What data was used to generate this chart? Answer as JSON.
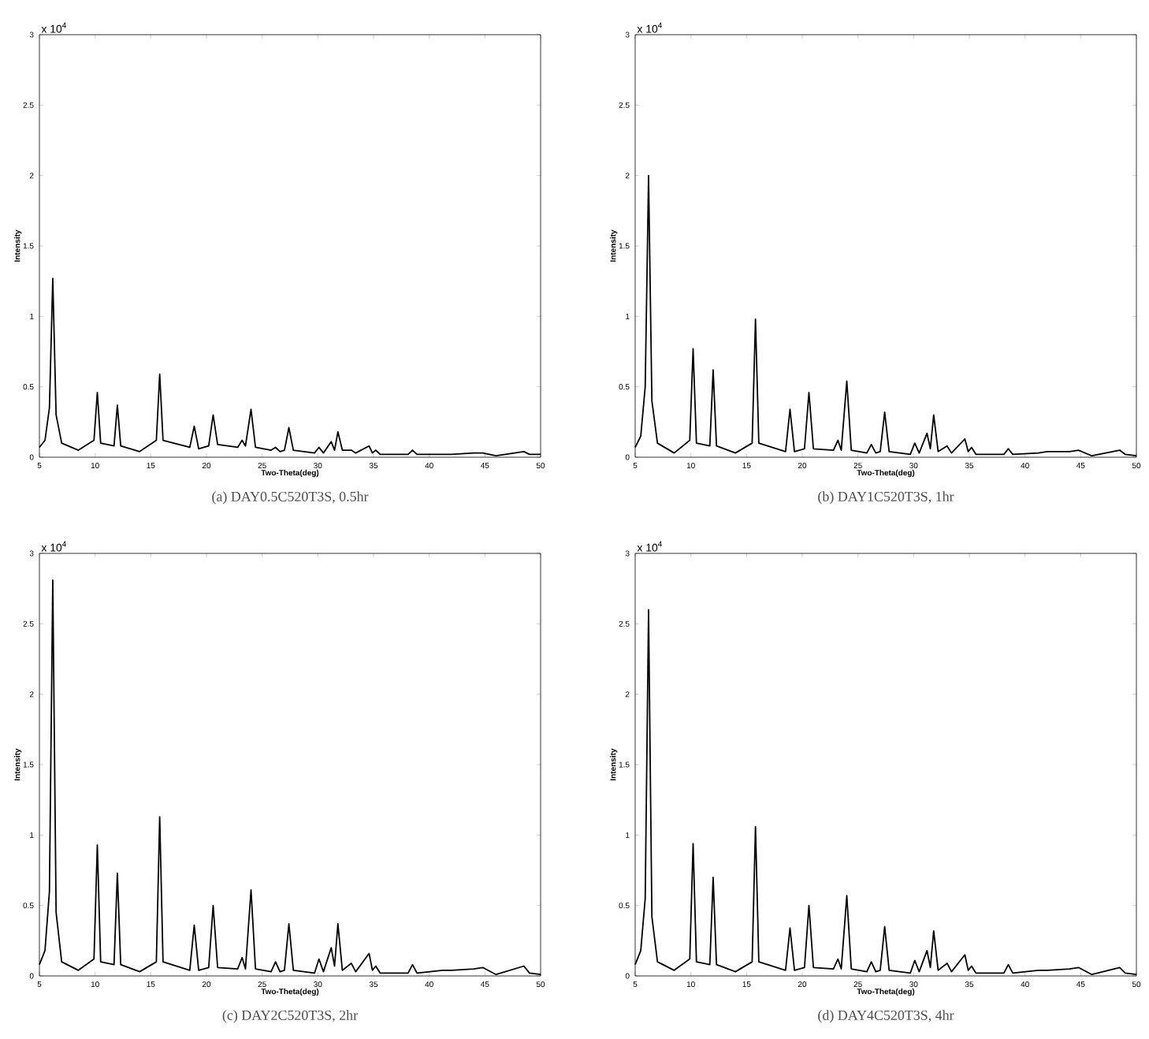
{
  "chart_data": [
    {
      "type": "line",
      "title": "(a) DAY0.5C520T3S, 0.5hr",
      "xlabel": "Two-Theta(deg)",
      "ylabel": "Intensity",
      "annotations": [
        "x 10$^{4}$"
      ],
      "color": "#000000",
      "xlim": [
        5,
        50
      ],
      "ylim": [
        0,
        3
      ],
      "xticks": [
        5,
        10,
        15,
        20,
        25,
        30,
        35,
        40,
        45,
        50
      ],
      "yticks": [
        0,
        0.5,
        1,
        1.5,
        2,
        2.5,
        3
      ],
      "x": [
        5,
        5.5,
        5.9,
        6.2,
        6.5,
        7,
        8.5,
        9.9,
        10.2,
        10.5,
        11.7,
        12.0,
        12.3,
        14,
        15.5,
        15.8,
        16.1,
        18.5,
        18.9,
        19.3,
        20.2,
        20.6,
        21,
        22.8,
        23.2,
        23.5,
        24.0,
        24.4,
        25.8,
        26.2,
        26.6,
        27.0,
        27.4,
        27.8,
        29.7,
        30.1,
        30.5,
        31.2,
        31.5,
        31.8,
        32.2,
        33.0,
        33.4,
        34.6,
        34.9,
        35.2,
        35.6,
        38.1,
        38.5,
        38.9,
        41.2,
        42.0,
        44.0,
        44.8,
        46,
        48.5,
        49,
        50
      ],
      "values": [
        0.07,
        0.12,
        0.35,
        1.27,
        0.3,
        0.1,
        0.05,
        0.12,
        0.46,
        0.1,
        0.08,
        0.37,
        0.08,
        0.04,
        0.12,
        0.59,
        0.12,
        0.07,
        0.22,
        0.06,
        0.08,
        0.3,
        0.09,
        0.07,
        0.12,
        0.08,
        0.34,
        0.07,
        0.05,
        0.07,
        0.04,
        0.05,
        0.21,
        0.05,
        0.03,
        0.07,
        0.03,
        0.11,
        0.05,
        0.18,
        0.05,
        0.05,
        0.03,
        0.08,
        0.03,
        0.05,
        0.02,
        0.02,
        0.05,
        0.02,
        0.02,
        0.02,
        0.03,
        0.03,
        0.01,
        0.04,
        0.02,
        0.02
      ]
    },
    {
      "type": "line",
      "title": "(b) DAY1C520T3S, 1hr",
      "xlabel": "Two-Theta(deg)",
      "ylabel": "Intensity",
      "annotations": [
        "x 10$^{4}$"
      ],
      "color": "#000000",
      "xlim": [
        5,
        50
      ],
      "ylim": [
        0,
        3
      ],
      "xticks": [
        5,
        10,
        15,
        20,
        25,
        30,
        35,
        40,
        45,
        50
      ],
      "yticks": [
        0,
        0.5,
        1,
        1.5,
        2,
        2.5,
        3
      ],
      "x": [
        5,
        5.5,
        5.9,
        6.2,
        6.5,
        7,
        8.5,
        9.9,
        10.2,
        10.5,
        11.7,
        12.0,
        12.3,
        14,
        15.5,
        15.8,
        16.1,
        18.5,
        18.9,
        19.3,
        20.2,
        20.6,
        21,
        22.8,
        23.2,
        23.5,
        24.0,
        24.4,
        25.8,
        26.2,
        26.6,
        27.0,
        27.4,
        27.8,
        29.7,
        30.1,
        30.5,
        31.2,
        31.5,
        31.8,
        32.2,
        33.0,
        33.4,
        34.6,
        34.9,
        35.2,
        35.6,
        38.1,
        38.5,
        38.9,
        41.2,
        42.0,
        44.0,
        44.8,
        46,
        48.5,
        49,
        50
      ],
      "values": [
        0.07,
        0.15,
        0.5,
        2.0,
        0.4,
        0.1,
        0.03,
        0.12,
        0.77,
        0.1,
        0.08,
        0.62,
        0.08,
        0.03,
        0.1,
        0.98,
        0.1,
        0.04,
        0.34,
        0.04,
        0.06,
        0.46,
        0.06,
        0.05,
        0.12,
        0.05,
        0.54,
        0.05,
        0.03,
        0.09,
        0.03,
        0.04,
        0.32,
        0.04,
        0.02,
        0.1,
        0.03,
        0.17,
        0.06,
        0.3,
        0.04,
        0.08,
        0.03,
        0.13,
        0.04,
        0.07,
        0.02,
        0.02,
        0.06,
        0.02,
        0.03,
        0.04,
        0.04,
        0.05,
        0.01,
        0.05,
        0.02,
        0.01
      ]
    },
    {
      "type": "line",
      "title": "(c) DAY2C520T3S, 2hr",
      "xlabel": "Two-Theta(deg)",
      "ylabel": "Intensity",
      "annotations": [
        "x 10$^{4}$"
      ],
      "color": "#000000",
      "xlim": [
        5,
        50
      ],
      "ylim": [
        0,
        3
      ],
      "xticks": [
        5,
        10,
        15,
        20,
        25,
        30,
        35,
        40,
        45,
        50
      ],
      "yticks": [
        0,
        0.5,
        1,
        1.5,
        2,
        2.5,
        3
      ],
      "x": [
        5,
        5.5,
        5.9,
        6.2,
        6.5,
        7,
        8.5,
        9.9,
        10.2,
        10.5,
        11.7,
        12.0,
        12.3,
        14,
        15.5,
        15.8,
        16.1,
        18.5,
        18.9,
        19.3,
        20.2,
        20.6,
        21,
        22.8,
        23.2,
        23.5,
        24.0,
        24.4,
        25.8,
        26.2,
        26.6,
        27.0,
        27.4,
        27.8,
        29.7,
        30.1,
        30.5,
        31.2,
        31.5,
        31.8,
        32.2,
        33.0,
        33.4,
        34.6,
        34.9,
        35.2,
        35.6,
        38.1,
        38.5,
        38.9,
        41.2,
        42.0,
        44.0,
        44.8,
        46,
        48.5,
        49,
        50
      ],
      "values": [
        0.08,
        0.18,
        0.6,
        2.81,
        0.45,
        0.1,
        0.04,
        0.12,
        0.93,
        0.1,
        0.08,
        0.73,
        0.08,
        0.03,
        0.1,
        1.13,
        0.1,
        0.04,
        0.36,
        0.04,
        0.06,
        0.5,
        0.06,
        0.05,
        0.13,
        0.05,
        0.61,
        0.05,
        0.03,
        0.1,
        0.03,
        0.04,
        0.37,
        0.04,
        0.02,
        0.12,
        0.03,
        0.2,
        0.07,
        0.37,
        0.04,
        0.09,
        0.03,
        0.16,
        0.04,
        0.07,
        0.02,
        0.02,
        0.08,
        0.02,
        0.04,
        0.04,
        0.05,
        0.06,
        0.01,
        0.07,
        0.02,
        0.01
      ]
    },
    {
      "type": "line",
      "title": "(d) DAY4C520T3S, 4hr",
      "xlabel": "Two-Theta(deg)",
      "ylabel": "Intensity",
      "annotations": [
        "x 10$^{4}$"
      ],
      "color": "#000000",
      "xlim": [
        5,
        50
      ],
      "ylim": [
        0,
        3
      ],
      "xticks": [
        5,
        10,
        15,
        20,
        25,
        30,
        35,
        40,
        45,
        50
      ],
      "yticks": [
        0,
        0.5,
        1,
        1.5,
        2,
        2.5,
        3
      ],
      "x": [
        5,
        5.5,
        5.9,
        6.2,
        6.5,
        7,
        8.5,
        9.9,
        10.2,
        10.5,
        11.7,
        12.0,
        12.3,
        14,
        15.5,
        15.8,
        16.1,
        18.5,
        18.9,
        19.3,
        20.2,
        20.6,
        21,
        22.8,
        23.2,
        23.5,
        24.0,
        24.4,
        25.8,
        26.2,
        26.6,
        27.0,
        27.4,
        27.8,
        29.7,
        30.1,
        30.5,
        31.2,
        31.5,
        31.8,
        32.2,
        33.0,
        33.4,
        34.6,
        34.9,
        35.2,
        35.6,
        38.1,
        38.5,
        38.9,
        41.2,
        42.0,
        44.0,
        44.8,
        46,
        48.5,
        49,
        50
      ],
      "values": [
        0.08,
        0.18,
        0.55,
        2.6,
        0.42,
        0.1,
        0.04,
        0.12,
        0.94,
        0.1,
        0.08,
        0.7,
        0.08,
        0.03,
        0.1,
        1.06,
        0.1,
        0.04,
        0.34,
        0.04,
        0.06,
        0.5,
        0.06,
        0.05,
        0.12,
        0.05,
        0.57,
        0.05,
        0.03,
        0.1,
        0.03,
        0.04,
        0.35,
        0.04,
        0.02,
        0.11,
        0.03,
        0.18,
        0.06,
        0.32,
        0.04,
        0.09,
        0.03,
        0.15,
        0.04,
        0.07,
        0.02,
        0.02,
        0.08,
        0.02,
        0.04,
        0.04,
        0.05,
        0.06,
        0.01,
        0.06,
        0.02,
        0.01
      ]
    }
  ]
}
